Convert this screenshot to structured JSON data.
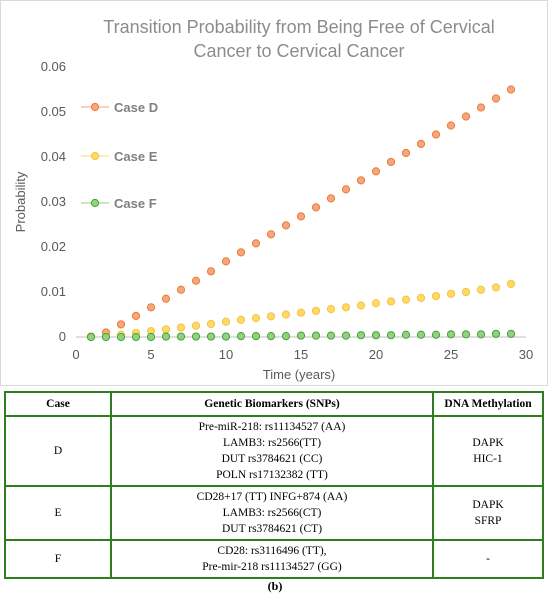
{
  "chart_data": {
    "type": "scatter",
    "title_lines": [
      "Transition Probability from Being Free of Cervical",
      "Cancer to Cervical Cancer"
    ],
    "xlabel": "Time (years)",
    "ylabel": "Probability",
    "xlim": [
      0,
      30
    ],
    "ylim": [
      0,
      0.06
    ],
    "xticks": [
      0,
      5,
      10,
      15,
      20,
      25,
      30
    ],
    "yticks": [
      0,
      0.01,
      0.02,
      0.03,
      0.04,
      0.05,
      0.06
    ],
    "grid": false,
    "legend_position": "top-left",
    "x": [
      1,
      2,
      3,
      4,
      5,
      6,
      7,
      8,
      9,
      10,
      11,
      12,
      13,
      14,
      15,
      16,
      17,
      18,
      19,
      20,
      21,
      22,
      23,
      24,
      25,
      26,
      27,
      28,
      29
    ],
    "series": [
      {
        "name": "Case D",
        "color": "#f4a582",
        "edge": "#ed7d31",
        "values": [
          0.0001,
          0.001,
          0.0028,
          0.0047,
          0.0066,
          0.0085,
          0.0105,
          0.0125,
          0.0146,
          0.0168,
          0.0188,
          0.0208,
          0.0228,
          0.0248,
          0.0268,
          0.0288,
          0.0308,
          0.0328,
          0.0348,
          0.0368,
          0.0389,
          0.0409,
          0.0429,
          0.045,
          0.047,
          0.049,
          0.051,
          0.053,
          0.055
        ]
      },
      {
        "name": "Case E",
        "color": "#ffd966",
        "edge": "#f5c342",
        "values": [
          0.0,
          0.0002,
          0.0005,
          0.0009,
          0.0013,
          0.0017,
          0.0021,
          0.0025,
          0.0029,
          0.0034,
          0.0038,
          0.0042,
          0.0046,
          0.005,
          0.0054,
          0.0058,
          0.0062,
          0.0066,
          0.007,
          0.0075,
          0.0079,
          0.0083,
          0.0087,
          0.0091,
          0.0096,
          0.01,
          0.0105,
          0.011,
          0.0118
        ]
      },
      {
        "name": "Case F",
        "color": "#8ed37d",
        "edge": "#4d9e3a",
        "values": [
          0.0,
          0.0,
          0.0,
          0.0,
          0.0,
          0.0001,
          0.0001,
          0.0001,
          0.0001,
          0.0001,
          0.0002,
          0.0002,
          0.0002,
          0.0002,
          0.0003,
          0.0003,
          0.0003,
          0.0003,
          0.0004,
          0.0004,
          0.0004,
          0.0005,
          0.0005,
          0.0005,
          0.0006,
          0.0006,
          0.0006,
          0.0007,
          0.0007
        ]
      }
    ]
  },
  "table": {
    "headers": [
      "Case",
      "Genetic Biomarkers (SNPs)",
      "DNA Methylation"
    ],
    "rows": [
      {
        "case": "D",
        "snps": [
          "Pre-miR-218: rs11134527 (AA)",
          "LAMB3: rs2566(TT)",
          "DUT rs3784621 (CC)",
          "POLN rs17132382 (TT)"
        ],
        "methylation": [
          "DAPK",
          "HIC-1"
        ]
      },
      {
        "case": "E",
        "snps": [
          "CD28+17 (TT) INFG+874 (AA)",
          "LAMB3: rs2566(CT)",
          "DUT rs3784621 (CT)"
        ],
        "methylation": [
          "DAPK",
          "SFRP"
        ]
      },
      {
        "case": "F",
        "snps": [
          "CD28: rs3116496 (TT),",
          "Pre-mir-218 rs11134527 (GG)"
        ],
        "methylation": [
          "-"
        ]
      }
    ]
  },
  "caption": "(b)"
}
